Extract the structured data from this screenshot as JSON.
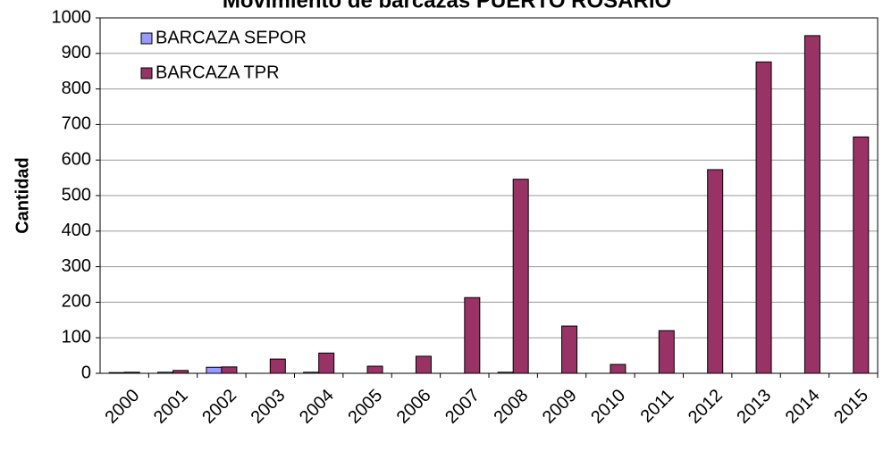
{
  "chart_data": {
    "type": "bar",
    "title": "Movimiento de barcazas PUERTO ROSARIO",
    "y_label": "Cantidad",
    "categories": [
      "2000",
      "2001",
      "2002",
      "2003",
      "2004",
      "2005",
      "2006",
      "2007",
      "2008",
      "2009",
      "2010",
      "2011",
      "2012",
      "2013",
      "2014",
      "2015"
    ],
    "series": [
      {
        "name": "BARCAZA SEPOR",
        "color": "#9999ff",
        "values": [
          2,
          3,
          17,
          0,
          3,
          0,
          0,
          0,
          3,
          0,
          0,
          0,
          0,
          0,
          0,
          0
        ]
      },
      {
        "name": "BARCAZA TPR",
        "color": "#993366",
        "values": [
          3,
          8,
          18,
          40,
          57,
          20,
          48,
          213,
          546,
          133,
          25,
          120,
          573,
          876,
          950,
          665
        ]
      }
    ],
    "ylim": [
      0,
      1000
    ],
    "yticks": [
      0,
      100,
      200,
      300,
      400,
      500,
      600,
      700,
      800,
      900,
      1000
    ],
    "grid": true,
    "legend": "upper left"
  }
}
